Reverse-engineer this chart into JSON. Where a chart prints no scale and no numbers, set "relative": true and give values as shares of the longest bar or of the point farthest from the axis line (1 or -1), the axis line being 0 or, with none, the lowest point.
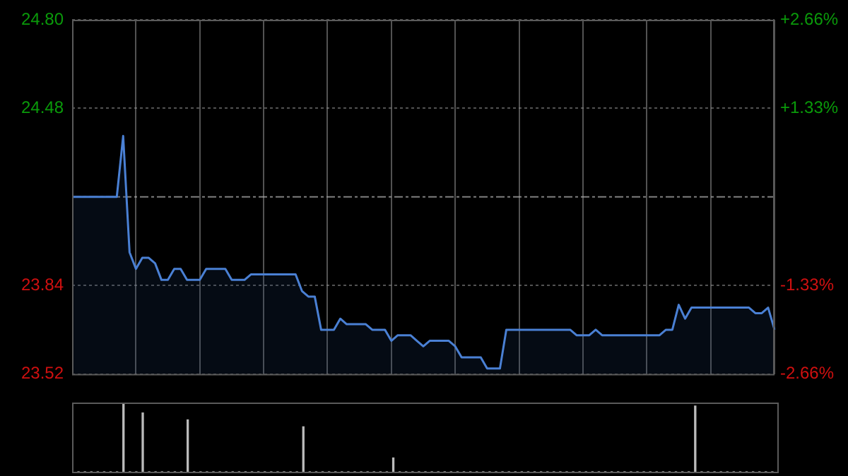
{
  "chart_data": [
    {
      "type": "area",
      "categories": [
        null,
        null,
        null,
        null,
        null,
        null,
        null,
        null,
        null,
        null,
        null,
        null,
        null,
        null,
        null,
        null,
        null,
        null,
        null,
        null,
        null,
        null,
        null,
        null,
        null,
        null,
        null,
        null,
        null,
        null,
        null,
        null,
        null,
        null,
        null,
        null,
        null,
        null,
        null,
        null,
        null,
        null,
        null,
        null,
        null,
        null,
        null,
        null,
        null,
        null,
        null,
        null,
        null,
        null,
        null,
        null,
        null,
        null,
        null,
        null,
        null,
        null,
        null,
        null,
        null,
        null,
        null,
        null,
        null,
        null,
        null,
        null,
        null,
        null,
        null,
        null,
        null,
        null,
        null,
        null,
        null,
        null,
        null,
        null,
        null,
        null,
        null,
        null,
        null,
        null,
        null,
        null,
        null,
        null,
        null,
        null,
        null,
        null,
        null,
        null,
        null,
        null,
        null,
        null,
        null,
        null,
        null,
        null,
        null,
        null,
        null
      ],
      "series": [
        {
          "color": "#4a80d4",
          "values": [
            24.16,
            24.16,
            24.16,
            24.16,
            24.16,
            24.16,
            24.16,
            24.16,
            24.38,
            23.96,
            23.9,
            23.94,
            23.94,
            23.92,
            23.86,
            23.86,
            23.9,
            23.9,
            23.86,
            23.86,
            23.86,
            23.9,
            23.9,
            23.9,
            23.9,
            23.86,
            23.86,
            23.86,
            23.88,
            23.88,
            23.88,
            23.88,
            23.88,
            23.88,
            23.88,
            23.88,
            23.82,
            23.8,
            23.8,
            23.68,
            23.68,
            23.68,
            23.72,
            23.7,
            23.7,
            23.7,
            23.7,
            23.68,
            23.68,
            23.68,
            23.64,
            23.66,
            23.66,
            23.66,
            23.64,
            23.62,
            23.64,
            23.64,
            23.64,
            23.64,
            23.62,
            23.58,
            23.58,
            23.58,
            23.58,
            23.54,
            23.54,
            23.54,
            23.68,
            23.68,
            23.68,
            23.68,
            23.68,
            23.68,
            23.68,
            23.68,
            23.68,
            23.68,
            23.68,
            23.66,
            23.66,
            23.66,
            23.68,
            23.66,
            23.66,
            23.66,
            23.66,
            23.66,
            23.66,
            23.66,
            23.66,
            23.66,
            23.66,
            23.68,
            23.68,
            23.77,
            23.72,
            23.76,
            23.76,
            23.76,
            23.76,
            23.76,
            23.76,
            23.76,
            23.76,
            23.76,
            23.76,
            23.74,
            23.74,
            23.76,
            23.68
          ]
        }
      ],
      "ylim": [
        23.52,
        24.8
      ],
      "yticks": [
        {
          "value": 23.52,
          "label": "23.52"
        },
        {
          "value": 23.84,
          "label": "23.84"
        },
        {
          "value": 24.48,
          "label": "24.48"
        },
        {
          "value": 24.8,
          "label": "24.80"
        }
      ],
      "y2lim": [
        -2.66,
        2.66
      ],
      "y2ticks": [
        {
          "value": -2.66,
          "label": "-2.66%"
        },
        {
          "value": -1.33,
          "label": "-1.33%"
        },
        {
          "value": 1.33,
          "label": "+1.33%"
        },
        {
          "value": 2.66,
          "label": "+2.66%"
        }
      ],
      "ref_lines": [
        {
          "axis": "y",
          "value": 24.16,
          "line_style": "dashed"
        }
      ],
      "grid": true,
      "legend": false,
      "marker": "none",
      "line_style": "solid"
    },
    {
      "type": "bar",
      "relative": true,
      "categories": [
        null,
        null,
        null,
        null,
        null,
        null,
        null,
        null,
        null,
        null,
        null,
        null,
        null,
        null,
        null,
        null,
        null,
        null,
        null,
        null,
        null,
        null,
        null,
        null,
        null,
        null,
        null,
        null,
        null,
        null,
        null,
        null,
        null,
        null,
        null,
        null,
        null,
        null,
        null,
        null,
        null,
        null,
        null,
        null,
        null,
        null,
        null,
        null,
        null,
        null,
        null,
        null,
        null,
        null,
        null,
        null,
        null,
        null,
        null,
        null,
        null,
        null,
        null,
        null,
        null,
        null,
        null,
        null,
        null,
        null,
        null,
        null,
        null,
        null,
        null,
        null,
        null,
        null,
        null,
        null,
        null,
        null,
        null,
        null,
        null,
        null,
        null,
        null,
        null,
        null,
        null,
        null,
        null,
        null,
        null,
        null,
        null,
        null,
        null,
        null,
        null,
        null,
        null,
        null,
        null,
        null,
        null,
        null,
        null,
        null,
        null
      ],
      "series": [
        {
          "color": "#bbbbbb",
          "values": [
            0,
            0,
            0,
            0,
            0,
            0,
            0,
            0,
            1,
            0,
            0,
            0.85,
            0,
            0,
            0,
            0,
            0,
            0,
            0.75,
            0,
            0,
            0,
            0,
            0,
            0,
            0,
            0,
            0,
            0,
            0,
            0,
            0,
            0,
            0,
            0,
            0,
            0.65,
            0,
            0,
            0,
            0,
            0,
            0,
            0,
            0,
            0,
            0,
            0,
            0,
            0,
            0.2,
            0,
            0,
            0,
            0,
            0,
            0,
            0,
            0,
            0,
            0,
            0,
            0,
            0,
            0,
            0,
            0,
            0,
            0,
            0,
            0,
            0,
            0,
            0,
            0,
            0,
            0,
            0,
            0,
            0,
            0,
            0,
            0,
            0,
            0,
            0,
            0,
            0,
            0,
            0,
            0,
            0,
            0,
            0,
            0,
            0,
            0,
            0.95,
            0,
            0,
            0,
            0,
            0,
            0,
            0,
            0,
            0,
            0,
            0,
            0,
            0
          ]
        }
      ],
      "legend": false
    }
  ]
}
